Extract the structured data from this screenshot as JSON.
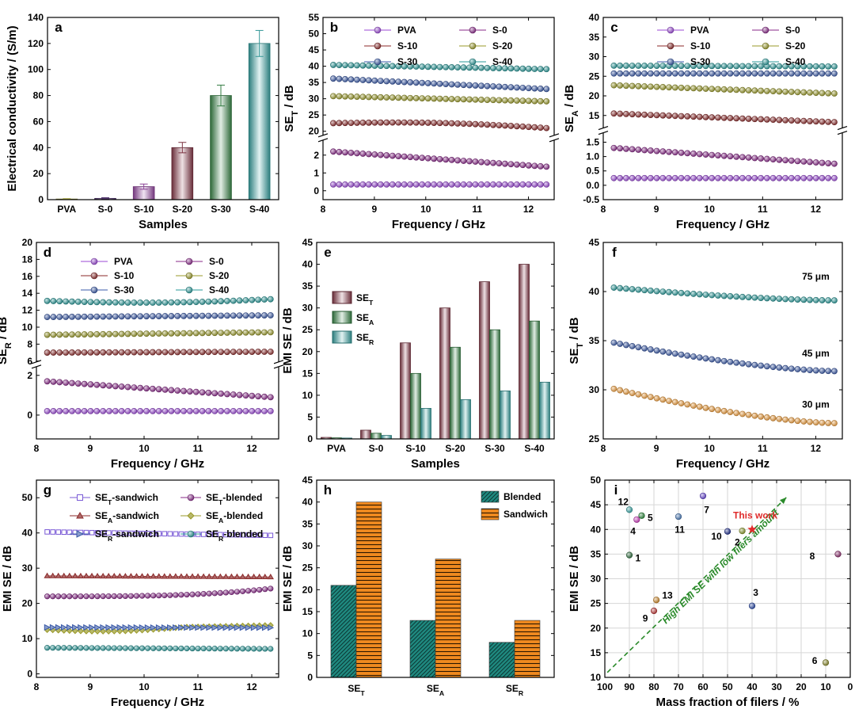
{
  "chart_data": [
    {
      "id": "a",
      "letter": "a",
      "type": "bar",
      "xlabel": "Samples",
      "ylabel": "Electrical conductivity / (S/m)",
      "categories": [
        "PVA",
        "S-0",
        "S-10",
        "S-20",
        "S-30",
        "S-40"
      ],
      "values": [
        0.5,
        1,
        10,
        40,
        80,
        120
      ],
      "errors": [
        0.3,
        0.5,
        2,
        4,
        8,
        10
      ],
      "ylim": [
        0,
        140
      ],
      "yticks": [
        0,
        20,
        40,
        60,
        80,
        100,
        120,
        140
      ],
      "colors": [
        "#b8b84a",
        "#5a3a7a",
        "#9b4aa8",
        "#8b3a4a",
        "#3a8a4a",
        "#3aa8a8"
      ]
    },
    {
      "id": "b",
      "letter": "b",
      "type": "line",
      "xlabel": "Frequency / GHz",
      "ylabel": "SE",
      "ylabel_sub": "T",
      "ylabel_tail": " / dB",
      "xlim": [
        8,
        12.5
      ],
      "xticks": [
        8,
        9,
        10,
        11,
        12
      ],
      "axis_break": {
        "lower": [
          -0.5,
          2.8
        ],
        "upper": [
          19,
          55
        ],
        "lower_ticks": [
          0,
          1,
          2
        ],
        "upper_ticks": [
          20,
          25,
          30,
          35,
          40,
          45,
          50,
          55
        ],
        "split": 0.66
      },
      "legend": [
        "PVA",
        "S-0",
        "S-10",
        "S-20",
        "S-30",
        "S-40"
      ],
      "series": [
        {
          "name": "PVA",
          "color": "#9b4ad6",
          "start": 0.35,
          "end": 0.35
        },
        {
          "name": "S-0",
          "color": "#8a2a8a",
          "start": 2.2,
          "end": 1.35
        },
        {
          "name": "S-10",
          "color": "#8b2a2a",
          "start": 22.5,
          "end": 21,
          "bump": 0.8
        },
        {
          "name": "S-20",
          "color": "#9a9a2a",
          "start": 30.8,
          "end": 29.2
        },
        {
          "name": "S-30",
          "color": "#3a5aa8",
          "start": 36.2,
          "end": 33
        },
        {
          "name": "S-40",
          "color": "#2a9a9a",
          "start": 40.4,
          "end": 39.1
        }
      ]
    },
    {
      "id": "c",
      "letter": "c",
      "type": "line",
      "xlabel": "Frequency / GHz",
      "ylabel": "SE",
      "ylabel_sub": "A",
      "ylabel_tail": " / dB",
      "xlim": [
        8,
        12.5
      ],
      "xticks": [
        8,
        9,
        10,
        11,
        12
      ],
      "axis_break": {
        "lower": [
          -0.5,
          1.8
        ],
        "upper": [
          12,
          40
        ],
        "lower_ticks": [
          -0.5,
          0.0,
          0.5,
          1.0,
          1.5
        ],
        "upper_ticks": [
          15,
          20,
          25,
          30,
          35,
          40
        ],
        "split": 0.62
      },
      "legend": [
        "PVA",
        "S-0",
        "S-10",
        "S-20",
        "S-30",
        "S-40"
      ],
      "series": [
        {
          "name": "PVA",
          "color": "#9b4ad6",
          "start": 0.25,
          "end": 0.25
        },
        {
          "name": "S-0",
          "color": "#8a2a8a",
          "start": 1.3,
          "end": 0.75
        },
        {
          "name": "S-10",
          "color": "#8b2a2a",
          "start": 15.5,
          "end": 13.3
        },
        {
          "name": "S-20",
          "color": "#9a9a2a",
          "start": 22.7,
          "end": 20.6
        },
        {
          "name": "S-30",
          "color": "#3a5aa8",
          "start": 25.7,
          "end": 25.7
        },
        {
          "name": "S-40",
          "color": "#2a9a9a",
          "start": 27.7,
          "end": 27.5
        }
      ]
    },
    {
      "id": "d",
      "letter": "d",
      "type": "line",
      "xlabel": "Frequency / GHz",
      "ylabel": "SE",
      "ylabel_sub": "R",
      "ylabel_tail": " / dB",
      "xlim": [
        8,
        12.5
      ],
      "xticks": [
        8,
        9,
        10,
        11,
        12
      ],
      "axis_break": {
        "lower": [
          -1.2,
          2.4
        ],
        "upper": [
          6,
          20
        ],
        "lower_ticks": [
          0,
          2
        ],
        "upper_ticks": [
          6,
          8,
          10,
          12,
          14,
          16,
          18,
          20
        ],
        "split": 0.62
      },
      "legend": [
        "PVA",
        "S-0",
        "S-10",
        "S-20",
        "S-30",
        "S-40"
      ],
      "series": [
        {
          "name": "PVA",
          "color": "#9b4ad6",
          "start": 0.2,
          "end": 0.2
        },
        {
          "name": "S-0",
          "color": "#8a2a8a",
          "start": 1.7,
          "end": 0.9
        },
        {
          "name": "S-10",
          "color": "#8b2a2a",
          "start": 7,
          "end": 7.1
        },
        {
          "name": "S-20",
          "color": "#9a9a2a",
          "start": 9.1,
          "end": 9.4
        },
        {
          "name": "S-30",
          "color": "#3a5aa8",
          "start": 11.2,
          "end": 11.4
        },
        {
          "name": "S-40",
          "color": "#2a9a9a",
          "start": 13.1,
          "end": 13.3,
          "bump": -0.3
        }
      ]
    },
    {
      "id": "e",
      "letter": "e",
      "type": "bar",
      "xlabel": "Samples",
      "ylabel": "EMI SE / dB",
      "categories": [
        "PVA",
        "S-0",
        "S-10",
        "S-20",
        "S-30",
        "S-40"
      ],
      "ylim": [
        0,
        45
      ],
      "yticks": [
        0,
        5,
        10,
        15,
        20,
        25,
        30,
        35,
        40,
        45
      ],
      "legend_labels": [
        {
          "base": "SE",
          "sub": "T"
        },
        {
          "base": "SE",
          "sub": "A"
        },
        {
          "base": "SE",
          "sub": "R"
        }
      ],
      "series": [
        {
          "color": "#8b3a4a",
          "values": [
            0.35,
            2,
            22,
            30,
            36,
            40
          ]
        },
        {
          "color": "#3a8a4a",
          "values": [
            0.25,
            1.3,
            15,
            21,
            25,
            27
          ]
        },
        {
          "color": "#3aa8a8",
          "values": [
            0.2,
            0.8,
            7,
            9,
            11,
            13
          ]
        }
      ]
    },
    {
      "id": "f",
      "letter": "f",
      "type": "line",
      "xlabel": "Frequency / GHz",
      "ylabel": "SE",
      "ylabel_sub": "T",
      "ylabel_tail": " / dB",
      "xlim": [
        8,
        12.5
      ],
      "xticks": [
        8,
        9,
        10,
        11,
        12
      ],
      "ylim": [
        25,
        45
      ],
      "yticks": [
        25,
        30,
        35,
        40,
        45
      ],
      "series": [
        {
          "name": "75 μm",
          "color": "#2a9a9a",
          "start": 40.4,
          "end": 39.1,
          "label_x": 12.0,
          "label_y": 41.2
        },
        {
          "name": "45 μm",
          "color": "#3a5aa8",
          "start": 34.8,
          "end": 31.9,
          "label_x": 12.0,
          "label_y": 33.4
        },
        {
          "name": "30 μm",
          "color": "#f0a040",
          "start": 30.1,
          "end": 26.6,
          "label_x": 12.0,
          "label_y": 28.2
        }
      ]
    },
    {
      "id": "g",
      "letter": "g",
      "type": "line",
      "xlabel": "Frequency / GHz",
      "ylabel": "EMI SE / dB",
      "xlim": [
        8,
        12.5
      ],
      "xticks": [
        8,
        9,
        10,
        11,
        12
      ],
      "ylim": [
        -1,
        55
      ],
      "yticks": [
        0,
        10,
        20,
        30,
        40,
        50
      ],
      "legend_labels": [
        {
          "base": "SE",
          "sub": "T",
          "tail": "-sandwich"
        },
        {
          "base": "SE",
          "sub": "T",
          "tail": "-blended"
        },
        {
          "base": "SE",
          "sub": "A",
          "tail": "-sandwich"
        },
        {
          "base": "SE",
          "sub": "A",
          "tail": "-blended"
        },
        {
          "base": "SE",
          "sub": "R",
          "tail": "-sandwich"
        },
        {
          "base": "SE",
          "sub": "R",
          "tail": "-blended"
        }
      ],
      "series": [
        {
          "color": "#7a5ad6",
          "marker": "square",
          "start": 40.3,
          "end": 39.3
        },
        {
          "color": "#8a2a8a",
          "marker": "circle",
          "start": 22,
          "end": 24.2,
          "late_rise": true
        },
        {
          "color": "#8b2a2a",
          "marker": "triangle",
          "start": 27.8,
          "end": 27.5
        },
        {
          "color": "#9a9a2a",
          "marker": "diamond",
          "start": 12.5,
          "end": 13.8,
          "dip": true
        },
        {
          "color": "#3a5aa8",
          "marker": "tri-right",
          "start": 13.2,
          "end": 13.1
        },
        {
          "color": "#2a9a9a",
          "marker": "circle",
          "start": 7.4,
          "end": 7.1
        }
      ]
    },
    {
      "id": "h",
      "letter": "h",
      "type": "bar",
      "ylabel": "EMI SE / dB",
      "categories": [
        {
          "base": "SE",
          "sub": "T"
        },
        {
          "base": "SE",
          "sub": "A"
        },
        {
          "base": "SE",
          "sub": "R"
        }
      ],
      "ylim": [
        0,
        45
      ],
      "yticks": [
        0,
        5,
        10,
        15,
        20,
        25,
        30,
        35,
        40,
        45
      ],
      "series": [
        {
          "name": "Blended",
          "color": "#1f8a80",
          "values": [
            21,
            13,
            8
          ]
        },
        {
          "name": "Sandwich",
          "color": "#f08a20",
          "values": [
            40,
            27,
            13
          ]
        }
      ]
    },
    {
      "id": "i",
      "letter": "i",
      "type": "scatter",
      "xlabel": "Mass fraction of filers / %",
      "ylabel": "EMI SE / dB",
      "xlim": [
        100,
        0
      ],
      "xticks": [
        100,
        90,
        80,
        70,
        60,
        50,
        40,
        30,
        20,
        10,
        0
      ],
      "ylim": [
        10,
        50
      ],
      "yticks": [
        10,
        15,
        20,
        25,
        30,
        35,
        40,
        45,
        50
      ],
      "grid": true,
      "arrow_label": "High EMI SE with low filers amount",
      "this_work_label": "This work",
      "points": [
        {
          "label": "1",
          "x": 90,
          "y": 34.8,
          "color": "#2a6a3a",
          "lx": 86.5,
          "ly": 34.2
        },
        {
          "label": "2",
          "x": 44,
          "y": 39.7,
          "color": "#8a9a2a",
          "lx": 46,
          "ly": 37.4
        },
        {
          "label": "3",
          "x": 40,
          "y": 24.5,
          "color": "#2a4aa8",
          "lx": 38.5,
          "ly": 27.2
        },
        {
          "label": "4",
          "x": 87,
          "y": 42.0,
          "color": "#d040c0",
          "lx": 88.5,
          "ly": 39.6
        },
        {
          "label": "5",
          "x": 85,
          "y": 42.8,
          "color": "#2a8a3a",
          "lx": 81.5,
          "ly": 42.4
        },
        {
          "label": "6",
          "x": 10,
          "y": 13.0,
          "color": "#8a8a2a",
          "lx": 14.5,
          "ly": 13.4
        },
        {
          "label": "7",
          "x": 60,
          "y": 46.8,
          "color": "#6a4ad6",
          "lx": 58.5,
          "ly": 44.0
        },
        {
          "label": "8",
          "x": 5,
          "y": 35.0,
          "color": "#8a2a6a",
          "lx": 15.5,
          "ly": 34.6
        },
        {
          "label": "9",
          "x": 80,
          "y": 23.5,
          "color": "#c03a3a",
          "lx": 83.5,
          "ly": 22.0
        },
        {
          "label": "10",
          "x": 50,
          "y": 39.6,
          "color": "#1a2a8a",
          "lx": 54.5,
          "ly": 38.6
        },
        {
          "label": "11",
          "x": 70,
          "y": 42.6,
          "color": "#4a7ab8",
          "lx": 69.5,
          "ly": 40.0
        },
        {
          "label": "12",
          "x": 90,
          "y": 44.0,
          "color": "#3aa8a8",
          "lx": 92.5,
          "ly": 45.6
        },
        {
          "label": "13",
          "x": 79,
          "y": 25.7,
          "color": "#d08a2a",
          "lx": 74.5,
          "ly": 26.6
        },
        {
          "label": "This work",
          "x": 40,
          "y": 40.0,
          "color": "#e02a2a",
          "star": true
        }
      ]
    }
  ]
}
